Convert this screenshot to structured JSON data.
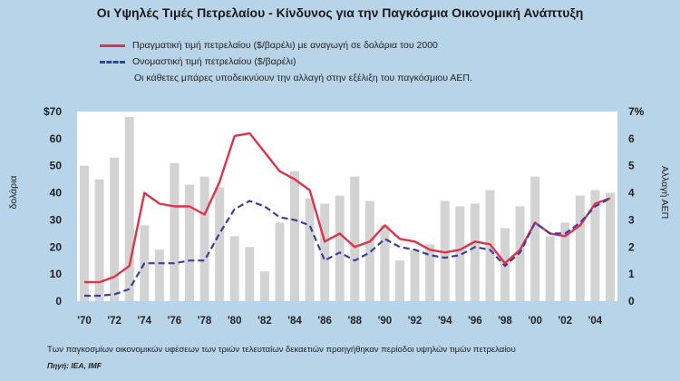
{
  "title": "Οι Υψηλές Τιμές Πετρελαίου - Κίνδυνος για την Παγκόσμια Οικονομική Ανάπτυξη",
  "legend": {
    "real": "Πραγματική τιμή πετρελαίου ($/βαρέλι) με αναγωγή σε δολάρια του 2000",
    "nominal": "Ονομαστική τιμή πετρελαίου ($/βαρέλι)",
    "bars_note": "Οι κάθετες μπάρες υποδεικνύουν την αλλαγή στην εξέλιξη του παγκόσμιου ΑΕΠ."
  },
  "footnote": "Των παγκοσμίων οικονομικών υφέσεων των τριών τελευταίων δεκαετιών προηγήθηκαν περίοδοι υψηλών τιμών πετρελαίου",
  "source": "Πηγή: IEA, IMF",
  "colors": {
    "background": "#b7d4e8",
    "plot_bg": "#ffffff",
    "bars": "#d3d3d3",
    "real": "#e0334a",
    "nominal": "#3b3f9e"
  },
  "chart_data": {
    "type": "line",
    "ylabel_left": "δολάρια",
    "ylabel_right": "Αλλαγή ΑΕΠ",
    "y_left_ticks": [
      "$70",
      "60",
      "50",
      "40",
      "30",
      "20",
      "10",
      "0"
    ],
    "y_right_ticks": [
      "7%",
      "6",
      "5",
      "4",
      "3",
      "2",
      "1",
      "0"
    ],
    "x_ticks": [
      "'70",
      "'72",
      "'74",
      "'76",
      "'78",
      "'80",
      "'82",
      "'84",
      "'86",
      "'88",
      "'90",
      "'92",
      "'94",
      "'96",
      "'98",
      "'00",
      "'02",
      "'04"
    ],
    "ylim_left": [
      0,
      70
    ],
    "ylim_right": [
      0,
      7
    ],
    "xlim": [
      1970,
      2005
    ],
    "grid": false,
    "years": [
      1970,
      1971,
      1972,
      1973,
      1974,
      1975,
      1976,
      1977,
      1978,
      1979,
      1980,
      1981,
      1982,
      1983,
      1984,
      1985,
      1986,
      1987,
      1988,
      1989,
      1990,
      1991,
      1992,
      1993,
      1994,
      1995,
      1996,
      1997,
      1998,
      1999,
      2000,
      2001,
      2002,
      2003,
      2004,
      2005
    ],
    "bar_series": {
      "name": "Αλλαγή ΑΕΠ",
      "values": [
        5.0,
        4.5,
        5.3,
        6.8,
        2.8,
        1.9,
        5.1,
        4.3,
        4.6,
        4.2,
        2.4,
        2.0,
        1.1,
        2.9,
        4.8,
        3.8,
        3.6,
        3.9,
        4.6,
        3.7,
        2.8,
        1.5,
        1.9,
        2.1,
        3.7,
        3.5,
        3.6,
        4.1,
        2.7,
        3.5,
        4.6,
        2.4,
        2.9,
        3.9,
        4.1,
        4.0
      ]
    },
    "series": [
      {
        "name": "Πραγματική τιμή πετρελαίου ($/βαρέλι) με αναγωγή σε δολάρια του 2000",
        "values": [
          7,
          7,
          9,
          13,
          40,
          36,
          35,
          35,
          32,
          44,
          61,
          62,
          55,
          48,
          45,
          41,
          22,
          25,
          20,
          22,
          28,
          23,
          22,
          19,
          18,
          19,
          22,
          21,
          14,
          19,
          29,
          25,
          24,
          28,
          36,
          38
        ]
      },
      {
        "name": "Ονομαστική τιμή πετρελαίου ($/βαρέλι)",
        "values": [
          2,
          2,
          2.5,
          4.5,
          14,
          14,
          14,
          15,
          15,
          25,
          34,
          37,
          35,
          31,
          30,
          28,
          15,
          18,
          15,
          18,
          23,
          20,
          19,
          17,
          16,
          17,
          20,
          19,
          13,
          18,
          29,
          25,
          25,
          29,
          35,
          38
        ]
      }
    ]
  }
}
